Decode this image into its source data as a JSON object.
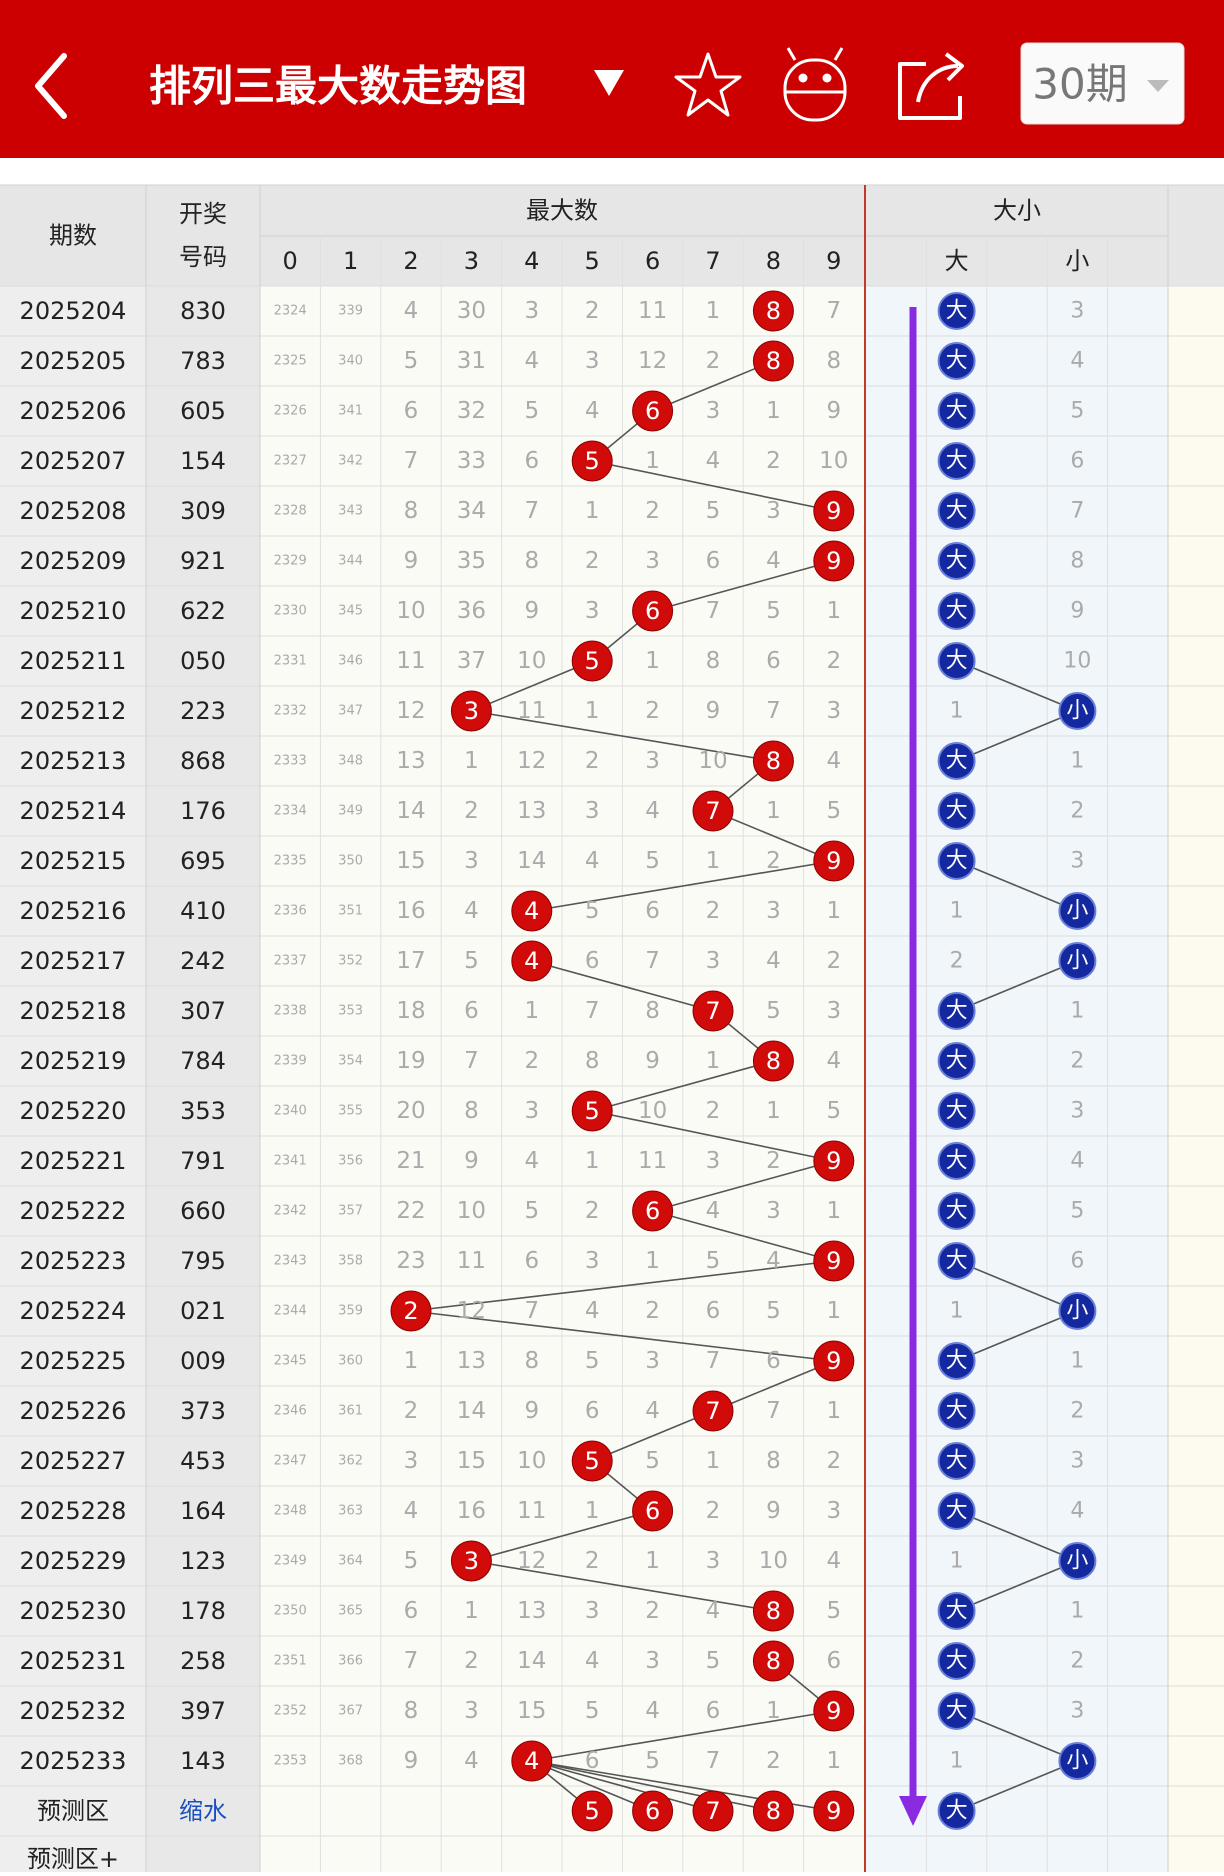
{
  "header": {
    "title": "排列三最大数走势图",
    "period_button": "30期"
  },
  "table": {
    "head": {
      "period": "期数",
      "code": [
        "开奖",
        "号码"
      ],
      "group1": "最大数",
      "digits": [
        "0",
        "1",
        "2",
        "3",
        "4",
        "5",
        "6",
        "7",
        "8",
        "9"
      ],
      "group2": "大小",
      "sizes": [
        "大",
        "小"
      ]
    },
    "rows": [
      {
        "period": "2025204",
        "code": "830",
        "cells": [
          "2324",
          "339",
          "4",
          "30",
          "3",
          "2",
          "11",
          "1",
          "8",
          "7"
        ],
        "size": [
          "大",
          "3"
        ]
      },
      {
        "period": "2025205",
        "code": "783",
        "cells": [
          "2325",
          "340",
          "5",
          "31",
          "4",
          "3",
          "12",
          "2",
          "8",
          "8"
        ],
        "size": [
          "大",
          "4"
        ]
      },
      {
        "period": "2025206",
        "code": "605",
        "cells": [
          "2326",
          "341",
          "6",
          "32",
          "5",
          "4",
          "6",
          "3",
          "1",
          "9"
        ],
        "size": [
          "大",
          "5"
        ]
      },
      {
        "period": "2025207",
        "code": "154",
        "cells": [
          "2327",
          "342",
          "7",
          "33",
          "6",
          "5",
          "1",
          "4",
          "2",
          "10"
        ],
        "size": [
          "大",
          "6"
        ]
      },
      {
        "period": "2025208",
        "code": "309",
        "cells": [
          "2328",
          "343",
          "8",
          "34",
          "7",
          "1",
          "2",
          "5",
          "3",
          "9"
        ],
        "size": [
          "大",
          "7"
        ]
      },
      {
        "period": "2025209",
        "code": "921",
        "cells": [
          "2329",
          "344",
          "9",
          "35",
          "8",
          "2",
          "3",
          "6",
          "4",
          "9"
        ],
        "size": [
          "大",
          "8"
        ]
      },
      {
        "period": "2025210",
        "code": "622",
        "cells": [
          "2330",
          "345",
          "10",
          "36",
          "9",
          "3",
          "6",
          "7",
          "5",
          "1"
        ],
        "size": [
          "大",
          "9"
        ]
      },
      {
        "period": "2025211",
        "code": "050",
        "cells": [
          "2331",
          "346",
          "11",
          "37",
          "10",
          "5",
          "1",
          "8",
          "6",
          "2"
        ],
        "size": [
          "大",
          "10"
        ]
      },
      {
        "period": "2025212",
        "code": "223",
        "cells": [
          "2332",
          "347",
          "12",
          "3",
          "11",
          "1",
          "2",
          "9",
          "7",
          "3"
        ],
        "size": [
          "1",
          "小"
        ]
      },
      {
        "period": "2025213",
        "code": "868",
        "cells": [
          "2333",
          "348",
          "13",
          "1",
          "12",
          "2",
          "3",
          "10",
          "8",
          "4"
        ],
        "size": [
          "大",
          "1"
        ]
      },
      {
        "period": "2025214",
        "code": "176",
        "cells": [
          "2334",
          "349",
          "14",
          "2",
          "13",
          "3",
          "4",
          "7",
          "1",
          "5"
        ],
        "size": [
          "大",
          "2"
        ]
      },
      {
        "period": "2025215",
        "code": "695",
        "cells": [
          "2335",
          "350",
          "15",
          "3",
          "14",
          "4",
          "5",
          "1",
          "2",
          "9"
        ],
        "size": [
          "大",
          "3"
        ]
      },
      {
        "period": "2025216",
        "code": "410",
        "cells": [
          "2336",
          "351",
          "16",
          "4",
          "4",
          "5",
          "6",
          "2",
          "3",
          "1"
        ],
        "size": [
          "1",
          "小"
        ]
      },
      {
        "period": "2025217",
        "code": "242",
        "cells": [
          "2337",
          "352",
          "17",
          "5",
          "4",
          "6",
          "7",
          "3",
          "4",
          "2"
        ],
        "size": [
          "2",
          "小"
        ]
      },
      {
        "period": "2025218",
        "code": "307",
        "cells": [
          "2338",
          "353",
          "18",
          "6",
          "1",
          "7",
          "8",
          "7",
          "5",
          "3"
        ],
        "size": [
          "大",
          "1"
        ]
      },
      {
        "period": "2025219",
        "code": "784",
        "cells": [
          "2339",
          "354",
          "19",
          "7",
          "2",
          "8",
          "9",
          "1",
          "8",
          "4"
        ],
        "size": [
          "大",
          "2"
        ]
      },
      {
        "period": "2025220",
        "code": "353",
        "cells": [
          "2340",
          "355",
          "20",
          "8",
          "3",
          "5",
          "10",
          "2",
          "1",
          "5"
        ],
        "size": [
          "大",
          "3"
        ]
      },
      {
        "period": "2025221",
        "code": "791",
        "cells": [
          "2341",
          "356",
          "21",
          "9",
          "4",
          "1",
          "11",
          "3",
          "2",
          "9"
        ],
        "size": [
          "大",
          "4"
        ]
      },
      {
        "period": "2025222",
        "code": "660",
        "cells": [
          "2342",
          "357",
          "22",
          "10",
          "5",
          "2",
          "6",
          "4",
          "3",
          "1"
        ],
        "size": [
          "大",
          "5"
        ]
      },
      {
        "period": "2025223",
        "code": "795",
        "cells": [
          "2343",
          "358",
          "23",
          "11",
          "6",
          "3",
          "1",
          "5",
          "4",
          "9"
        ],
        "size": [
          "大",
          "6"
        ]
      },
      {
        "period": "2025224",
        "code": "021",
        "cells": [
          "2344",
          "359",
          "2",
          "12",
          "7",
          "4",
          "2",
          "6",
          "5",
          "1"
        ],
        "size": [
          "1",
          "小"
        ]
      },
      {
        "period": "2025225",
        "code": "009",
        "cells": [
          "2345",
          "360",
          "1",
          "13",
          "8",
          "5",
          "3",
          "7",
          "6",
          "9"
        ],
        "size": [
          "大",
          "1"
        ]
      },
      {
        "period": "2025226",
        "code": "373",
        "cells": [
          "2346",
          "361",
          "2",
          "14",
          "9",
          "6",
          "4",
          "7",
          "7",
          "1"
        ],
        "size": [
          "大",
          "2"
        ]
      },
      {
        "period": "2025227",
        "code": "453",
        "cells": [
          "2347",
          "362",
          "3",
          "15",
          "10",
          "5",
          "5",
          "1",
          "8",
          "2"
        ],
        "size": [
          "大",
          "3"
        ]
      },
      {
        "period": "2025228",
        "code": "164",
        "cells": [
          "2348",
          "363",
          "4",
          "16",
          "11",
          "1",
          "6",
          "2",
          "9",
          "3"
        ],
        "size": [
          "大",
          "4"
        ]
      },
      {
        "period": "2025229",
        "code": "123",
        "cells": [
          "2349",
          "364",
          "5",
          "3",
          "12",
          "2",
          "1",
          "3",
          "10",
          "4"
        ],
        "size": [
          "1",
          "小"
        ]
      },
      {
        "period": "2025230",
        "code": "178",
        "cells": [
          "2350",
          "365",
          "6",
          "1",
          "13",
          "3",
          "2",
          "4",
          "8",
          "5"
        ],
        "size": [
          "大",
          "1"
        ]
      },
      {
        "period": "2025231",
        "code": "258",
        "cells": [
          "2351",
          "366",
          "7",
          "2",
          "14",
          "4",
          "3",
          "5",
          "8",
          "6"
        ],
        "size": [
          "大",
          "2"
        ]
      },
      {
        "period": "2025232",
        "code": "397",
        "cells": [
          "2352",
          "367",
          "8",
          "3",
          "15",
          "5",
          "4",
          "6",
          "1",
          "9"
        ],
        "size": [
          "大",
          "3"
        ]
      },
      {
        "period": "2025233",
        "code": "143",
        "cells": [
          "2353",
          "368",
          "9",
          "4",
          "4",
          "6",
          "5",
          "7",
          "2",
          "1"
        ],
        "size": [
          "1",
          "小"
        ]
      }
    ],
    "predict": {
      "label": "预测区",
      "code": "缩水",
      "digits": [
        "5",
        "6",
        "7",
        "8",
        "9"
      ],
      "size": "大"
    },
    "predict_plus": {
      "label": "预测区+"
    }
  }
}
